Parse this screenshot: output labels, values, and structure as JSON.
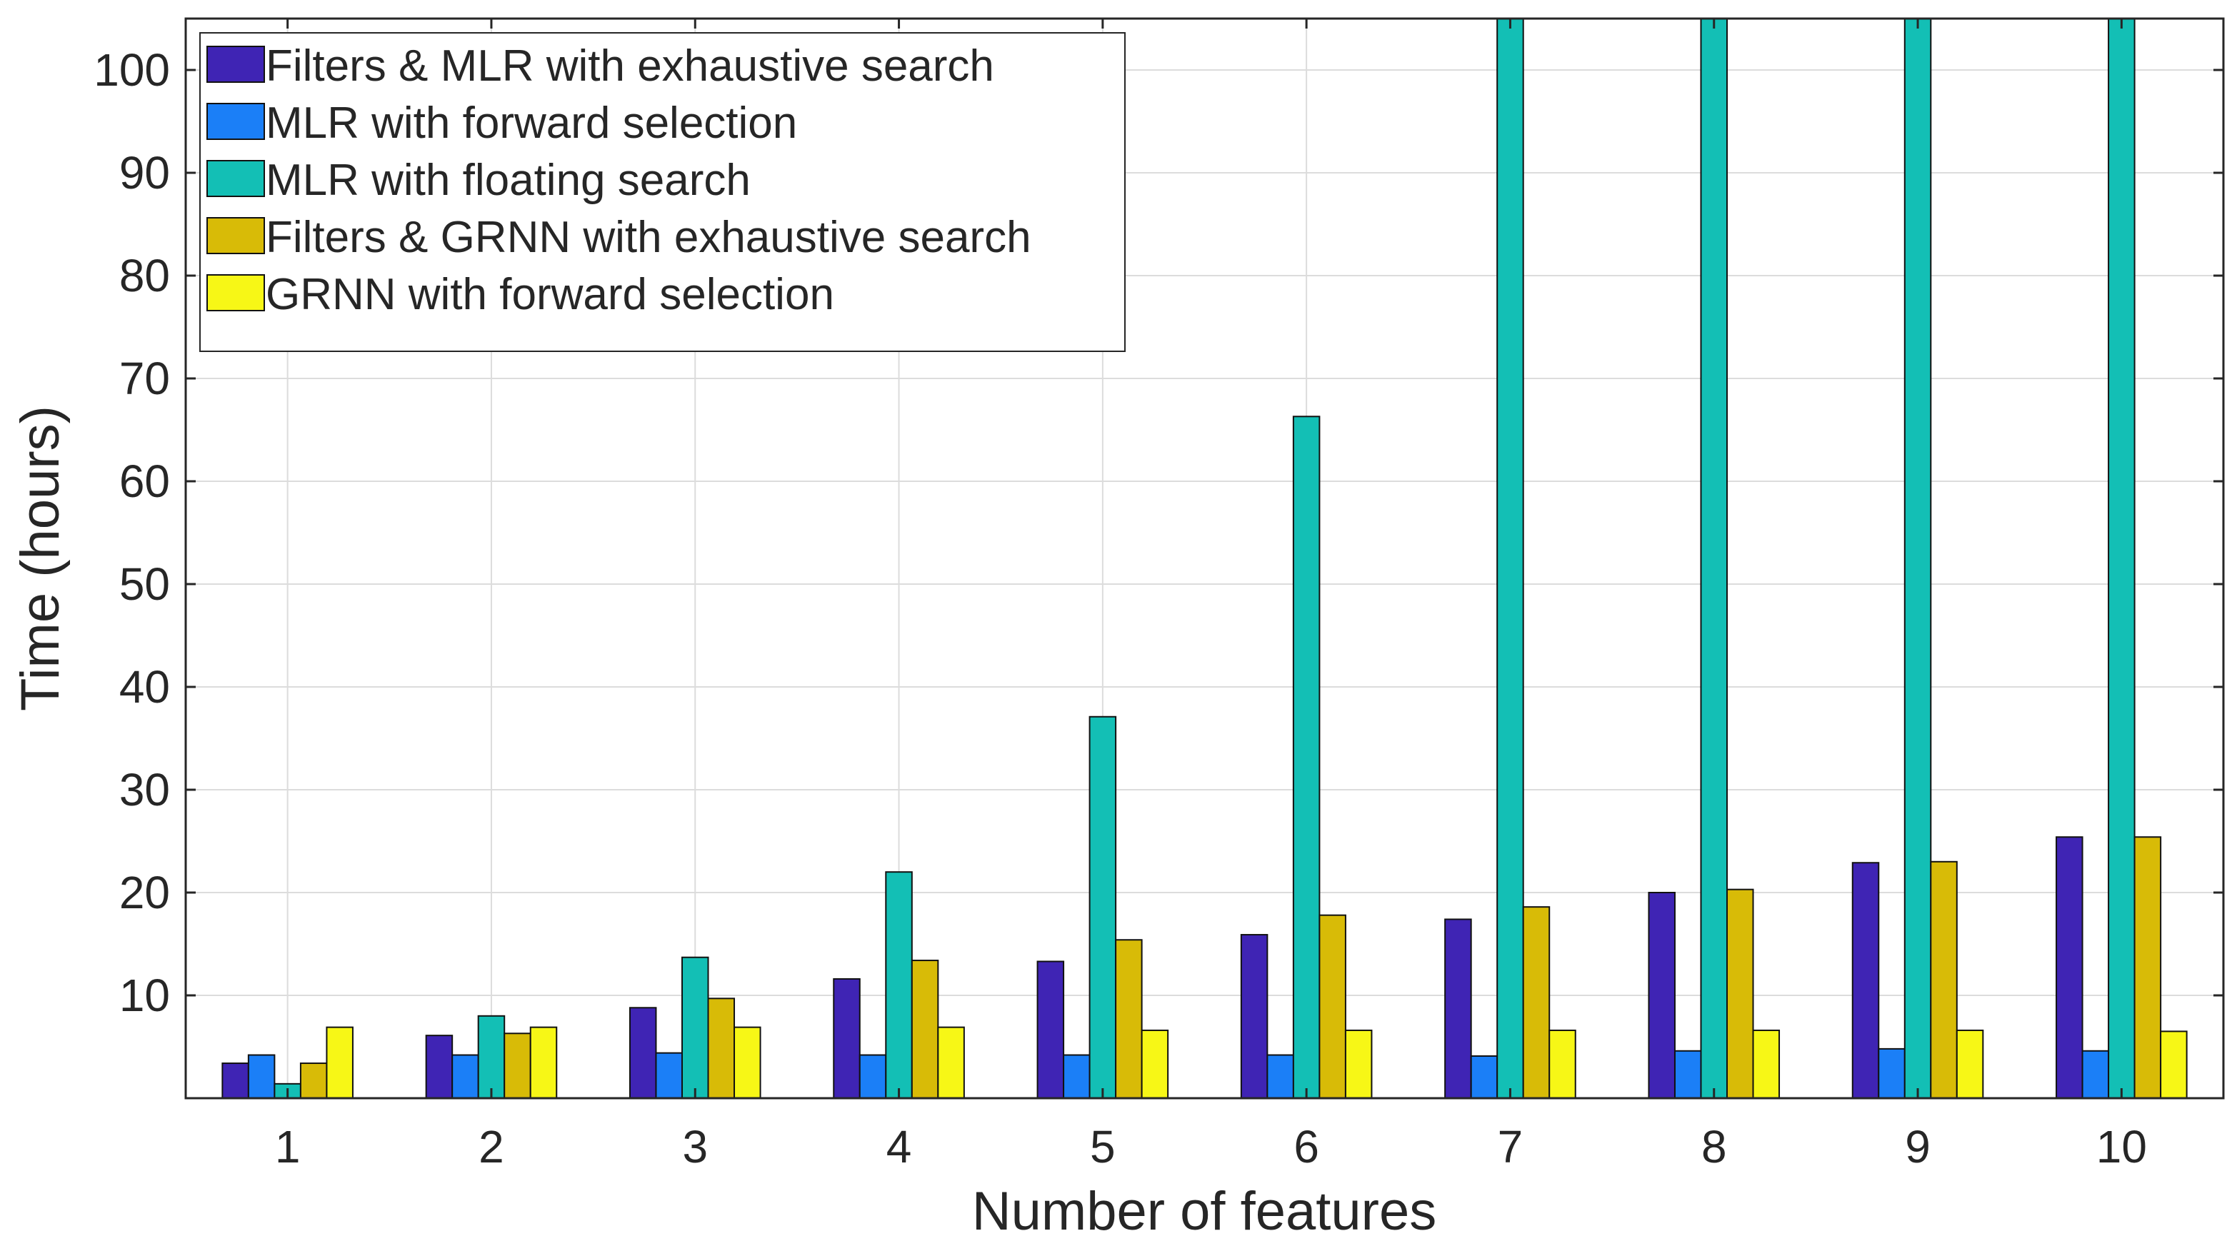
{
  "chart_data": {
    "type": "bar",
    "title": "",
    "xlabel": "Number of features",
    "ylabel": "Time (hours)",
    "ylim": [
      0,
      105
    ],
    "yticks": [
      10,
      20,
      30,
      40,
      50,
      60,
      70,
      80,
      90,
      100
    ],
    "grid": true,
    "legend_position": "top-left",
    "categories": [
      "1",
      "2",
      "3",
      "4",
      "5",
      "6",
      "7",
      "8",
      "9",
      "10"
    ],
    "series": [
      {
        "name": "Filters & MLR with exhaustive search",
        "color": "#3f24b4",
        "values": [
          3.4,
          6.1,
          8.8,
          11.6,
          13.3,
          15.9,
          17.4,
          20.0,
          22.9,
          25.4
        ]
      },
      {
        "name": "MLR with forward selection",
        "color": "#1b7ff7",
        "values": [
          4.2,
          4.2,
          4.4,
          4.2,
          4.2,
          4.2,
          4.1,
          4.6,
          4.8,
          4.6
        ]
      },
      {
        "name": "MLR with floating search",
        "color": "#13bfb5",
        "values": [
          1.4,
          8.0,
          13.7,
          22.0,
          37.1,
          66.3,
          105,
          105,
          105,
          105
        ]
      },
      {
        "name": "Filters & GRNN with exhaustive search",
        "color": "#d8bb07",
        "values": [
          3.4,
          6.3,
          9.7,
          13.4,
          15.4,
          17.8,
          18.6,
          20.3,
          23.0,
          25.4
        ]
      },
      {
        "name": "GRNN with forward selection",
        "color": "#f7f716",
        "values": [
          6.9,
          6.9,
          6.9,
          6.9,
          6.6,
          6.6,
          6.6,
          6.6,
          6.6,
          6.5
        ]
      }
    ]
  }
}
